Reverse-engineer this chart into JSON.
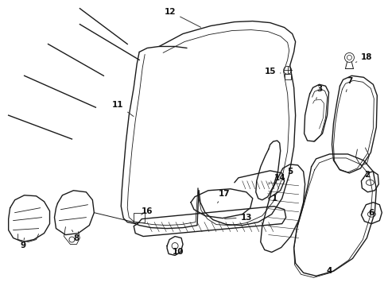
{
  "background_color": "#ffffff",
  "line_color": "#1a1a1a",
  "text_color": "#111111",
  "fig_width": 4.89,
  "fig_height": 3.6,
  "dpi": 100
}
